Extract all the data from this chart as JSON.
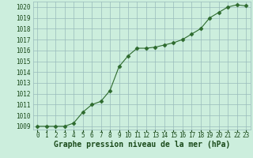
{
  "x": [
    0,
    1,
    2,
    3,
    4,
    5,
    6,
    7,
    8,
    9,
    10,
    11,
    12,
    13,
    14,
    15,
    16,
    17,
    18,
    19,
    20,
    21,
    22,
    23
  ],
  "y": [
    1009.0,
    1009.0,
    1009.0,
    1009.0,
    1009.3,
    1010.3,
    1011.0,
    1011.3,
    1012.3,
    1014.5,
    1015.5,
    1016.2,
    1016.2,
    1016.3,
    1016.5,
    1016.7,
    1017.0,
    1017.5,
    1018.0,
    1019.0,
    1019.5,
    1020.0,
    1020.2,
    1020.1
  ],
  "line_color": "#2d6a2d",
  "marker": "D",
  "marker_size": 2.5,
  "bg_color": "#cceedd",
  "grid_color": "#99bbbb",
  "xlabel": "Graphe pression niveau de la mer (hPa)",
  "xlabel_color": "#1a4a1a",
  "tick_color": "#1a4a1a",
  "ylim": [
    1008.7,
    1020.5
  ],
  "xlim": [
    -0.5,
    23.5
  ],
  "yticks": [
    1009,
    1010,
    1011,
    1012,
    1013,
    1014,
    1015,
    1016,
    1017,
    1018,
    1019,
    1020
  ],
  "xticks": [
    0,
    1,
    2,
    3,
    4,
    5,
    6,
    7,
    8,
    9,
    10,
    11,
    12,
    13,
    14,
    15,
    16,
    17,
    18,
    19,
    20,
    21,
    22,
    23
  ],
  "tick_fontsize": 5.5,
  "xlabel_fontsize": 7.0,
  "linewidth": 0.8
}
